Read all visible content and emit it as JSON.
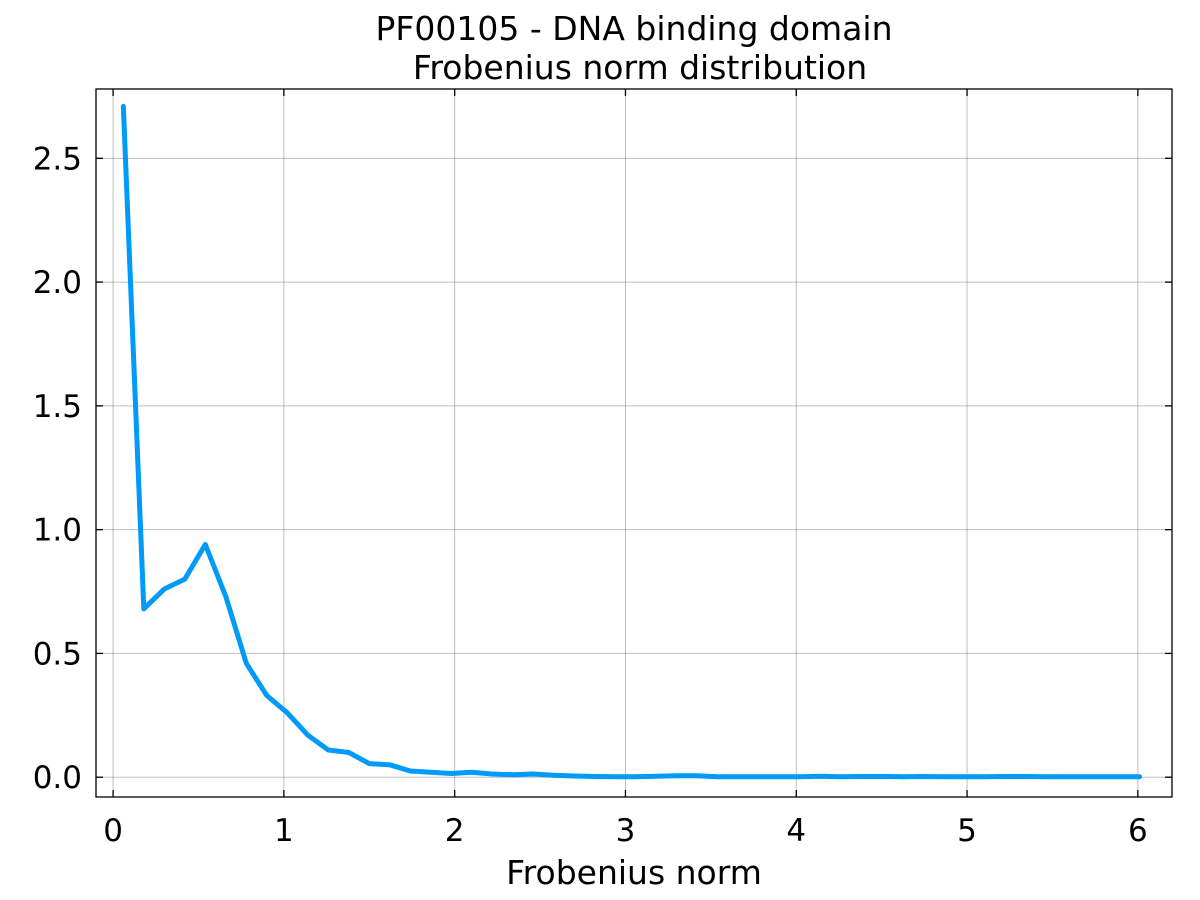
{
  "chart_data": {
    "type": "line",
    "title": "PF00105 - DNA binding domain",
    "subtitle": "Frobenius norm distribution",
    "xlabel": "Frobenius norm",
    "ylabel": "",
    "xlim": [
      -0.1,
      6.2
    ],
    "ylim": [
      -0.08,
      2.78
    ],
    "xticks": [
      0,
      1,
      2,
      3,
      4,
      5,
      6
    ],
    "xtick_labels": [
      "0",
      "1",
      "2",
      "3",
      "4",
      "5",
      "6"
    ],
    "yticks": [
      0.0,
      0.5,
      1.0,
      1.5,
      2.0,
      2.5
    ],
    "ytick_labels": [
      "0.0",
      "0.5",
      "1.0",
      "1.5",
      "2.0",
      "2.5"
    ],
    "grid": true,
    "series": [
      {
        "color": "#009af9",
        "x": [
          0.06,
          0.18,
          0.3,
          0.42,
          0.54,
          0.66,
          0.78,
          0.9,
          1.02,
          1.14,
          1.26,
          1.38,
          1.5,
          1.62,
          1.74,
          1.86,
          1.98,
          2.1,
          2.22,
          2.34,
          2.46,
          2.58,
          2.7,
          2.82,
          2.94,
          3.06,
          3.18,
          3.3,
          3.42,
          3.54,
          3.66,
          3.78,
          3.9,
          4.02,
          4.14,
          4.26,
          4.38,
          4.5,
          4.62,
          4.74,
          4.86,
          4.98,
          5.1,
          5.22,
          5.34,
          5.46,
          5.58,
          5.7,
          5.82,
          5.94,
          6.01
        ],
        "y": [
          2.71,
          0.68,
          0.76,
          0.8,
          0.94,
          0.73,
          0.46,
          0.33,
          0.26,
          0.17,
          0.11,
          0.1,
          0.055,
          0.05,
          0.025,
          0.02,
          0.015,
          0.02,
          0.013,
          0.01,
          0.013,
          0.008,
          0.005,
          0.003,
          0.002,
          0.002,
          0.004,
          0.006,
          0.006,
          0.002,
          0.002,
          0.002,
          0.002,
          0.002,
          0.004,
          0.002,
          0.003,
          0.003,
          0.002,
          0.003,
          0.002,
          0.002,
          0.002,
          0.003,
          0.003,
          0.002,
          0.002,
          0.002,
          0.002,
          0.002,
          0.002
        ]
      }
    ]
  }
}
